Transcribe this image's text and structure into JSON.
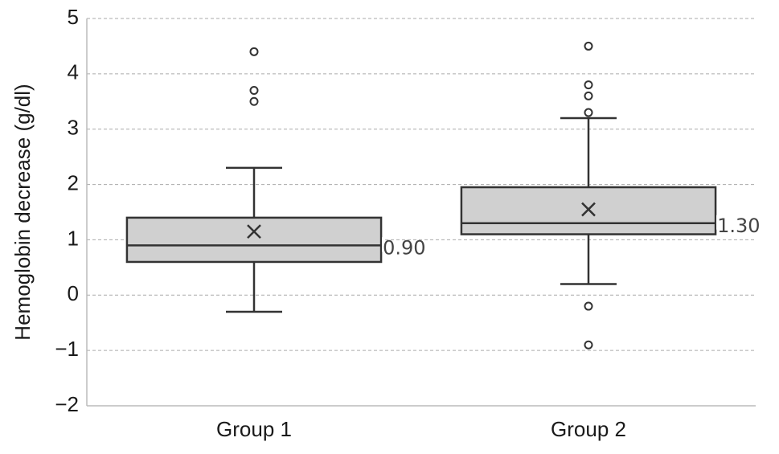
{
  "chart_data": {
    "type": "box",
    "ylabel": "Hemoglobin decrease (g/dl)",
    "categories": [
      "Group 1",
      "Group 2"
    ],
    "boxes": [
      {
        "whisker_low": -0.3,
        "q1": 0.6,
        "median": 0.9,
        "q3": 1.4,
        "whisker_high": 2.3,
        "mean": 1.15,
        "outliers": [
          4.4,
          3.7,
          3.5
        ]
      },
      {
        "whisker_low": 0.2,
        "q1": 1.1,
        "median": 1.3,
        "q3": 1.95,
        "whisker_high": 3.2,
        "mean": 1.55,
        "outliers": [
          4.5,
          3.8,
          3.6,
          3.3,
          -0.2,
          -0.9
        ]
      }
    ],
    "median_labels": [
      "0.90",
      "1.30"
    ],
    "color": "#d0d0d0",
    "ylim": [
      -2,
      5
    ],
    "yticks": [
      {
        "value": -2,
        "label": "−2"
      },
      {
        "value": -1,
        "label": "−1"
      },
      0,
      1,
      2,
      3,
      4,
      5
    ],
    "grid": true
  }
}
